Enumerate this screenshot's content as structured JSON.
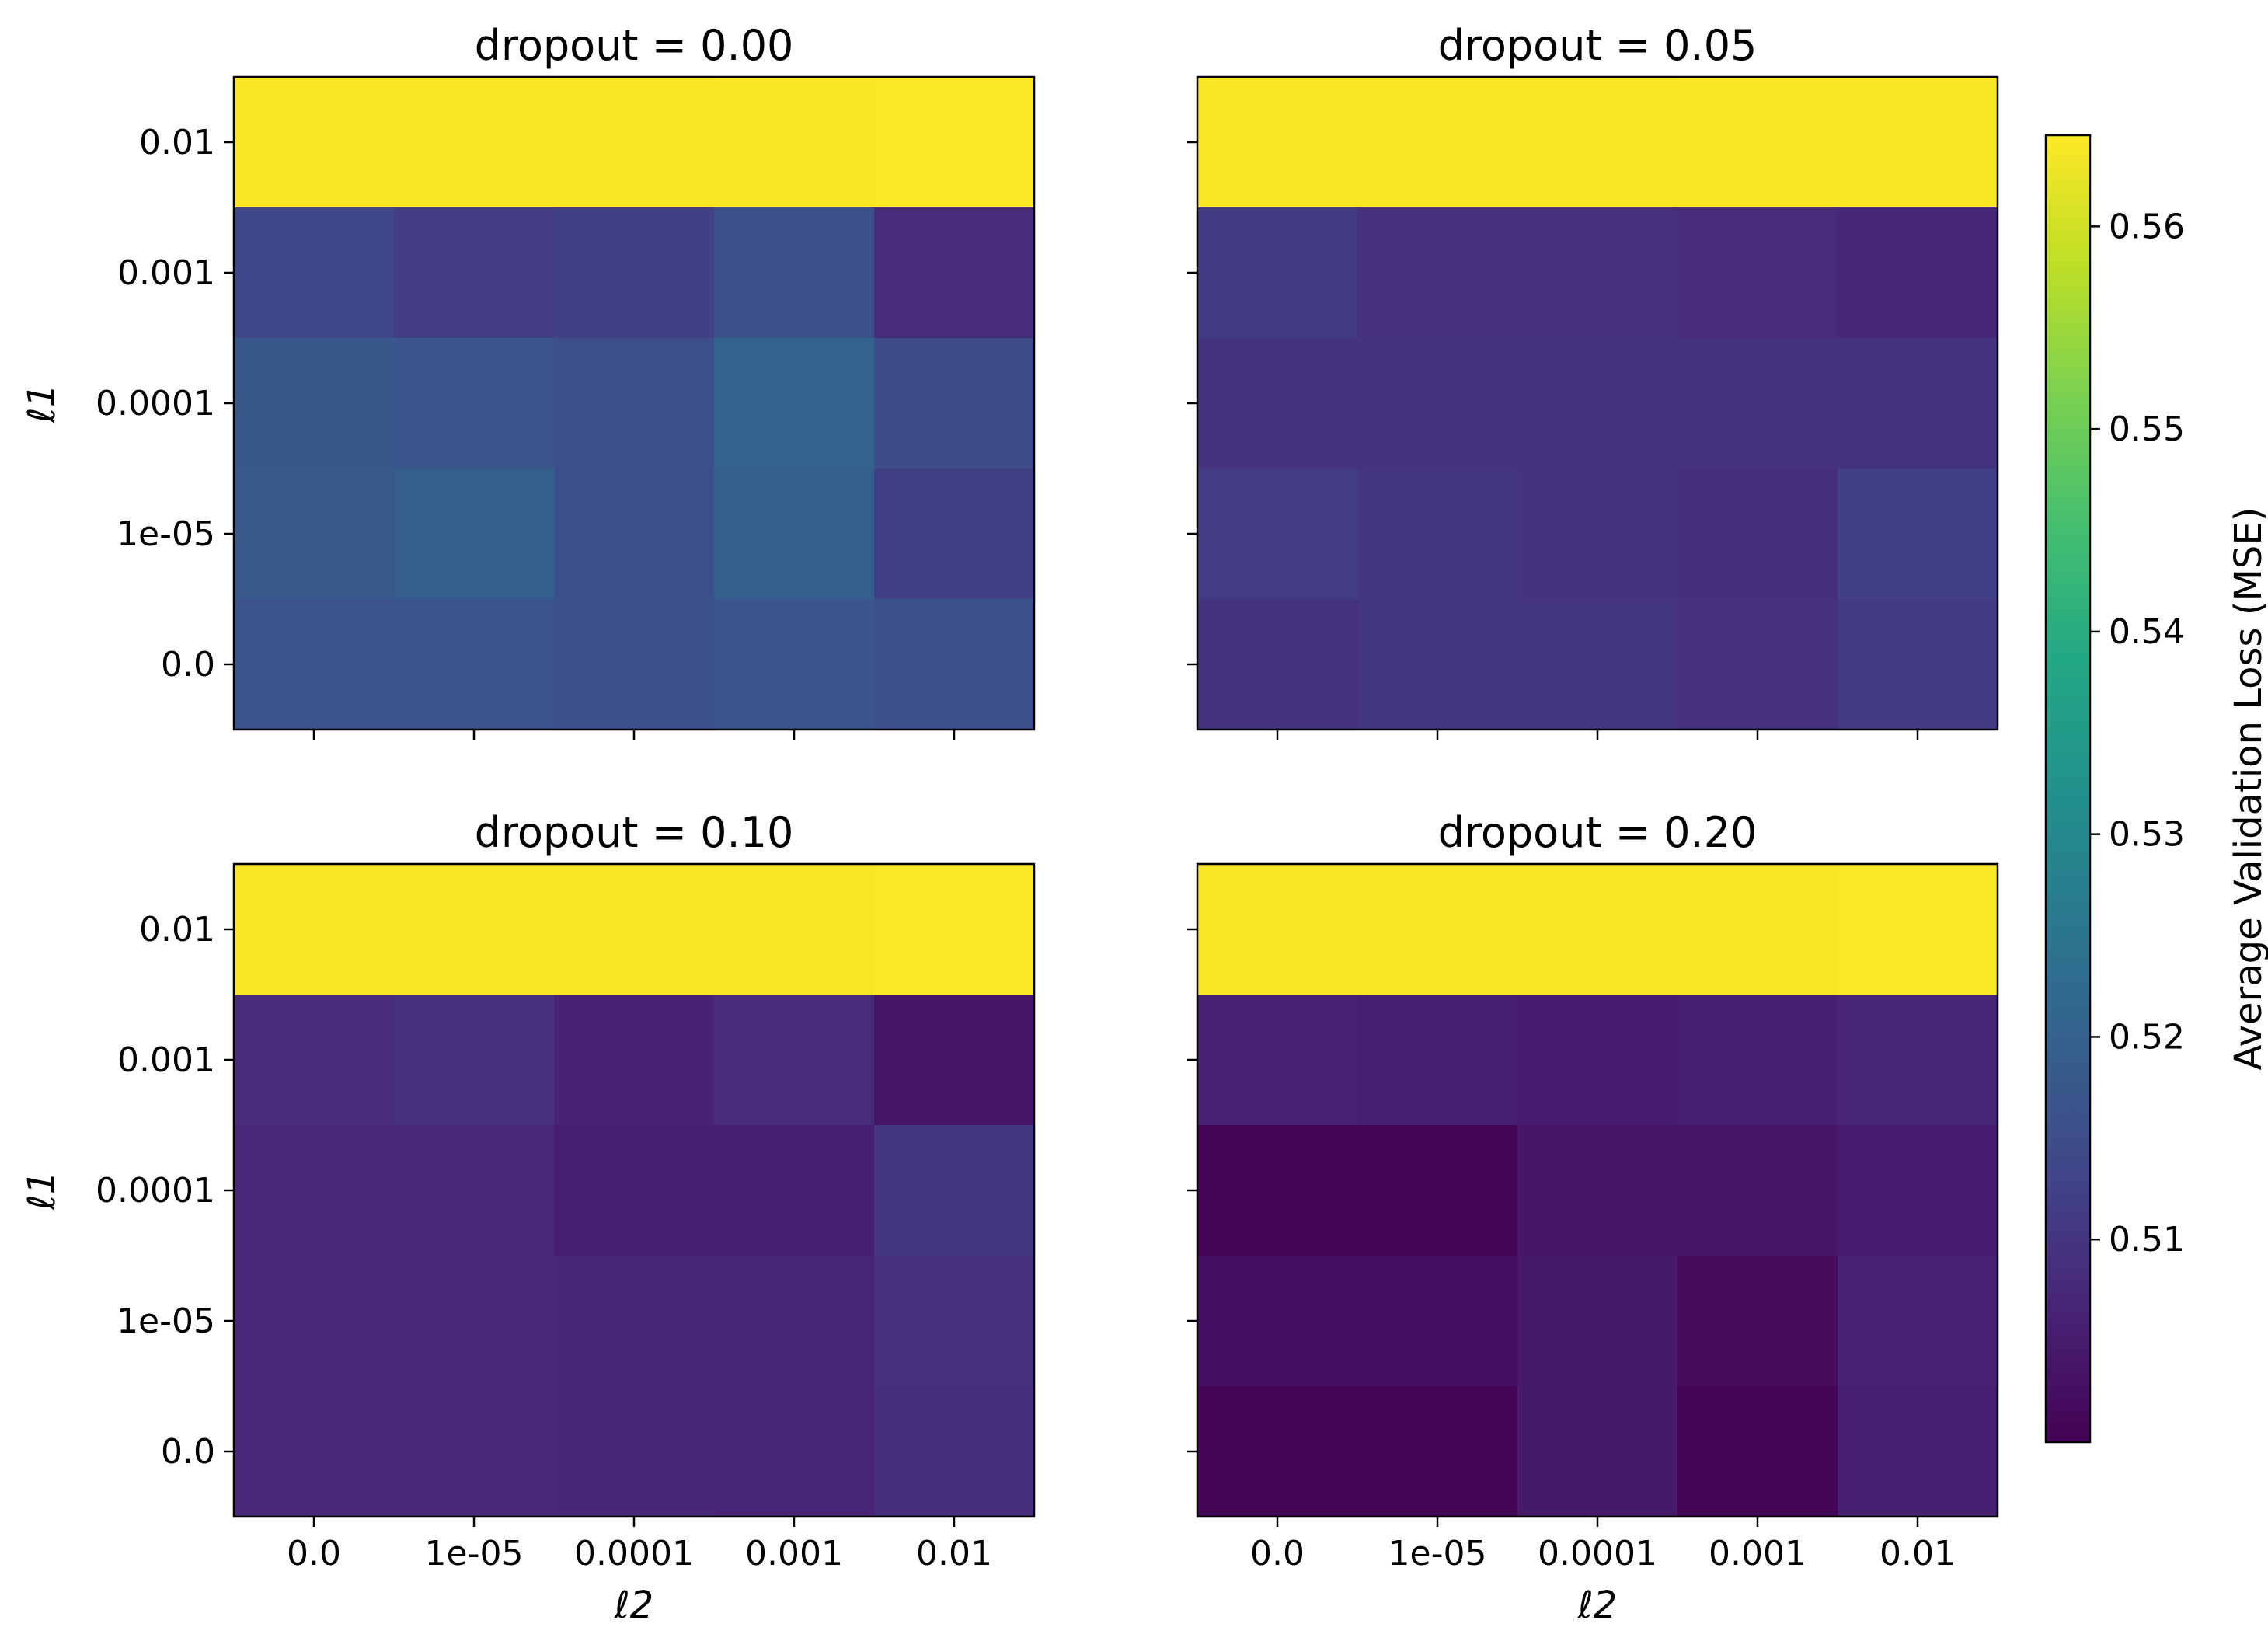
{
  "chart_data": {
    "type": "heatmap",
    "colormap": "viridis",
    "x_tick_labels": [
      "0.0",
      "1e-05",
      "0.0001",
      "0.001",
      "0.01"
    ],
    "y_tick_labels": [
      "0.01",
      "0.001",
      "0.0001",
      "1e-05",
      "0.0"
    ],
    "xlabel": "ℓ2",
    "ylabel": "ℓ1",
    "colorbar": {
      "label": "Average Validation Loss (MSE)",
      "min": 0.5,
      "max": 0.5645,
      "ticks": [
        0.51,
        0.52,
        0.53,
        0.54,
        0.55,
        0.56
      ]
    },
    "panels": [
      {
        "title": "dropout = 0.00",
        "values": [
          [
            0.564,
            0.564,
            0.564,
            0.5641,
            0.5643
          ],
          [
            0.5135,
            0.5115,
            0.512,
            0.5155,
            0.508
          ],
          [
            0.5175,
            0.517,
            0.5155,
            0.5205,
            0.515
          ],
          [
            0.518,
            0.519,
            0.516,
            0.519,
            0.512
          ],
          [
            0.5165,
            0.5165,
            0.516,
            0.517,
            0.516
          ]
        ]
      },
      {
        "title": "dropout = 0.05",
        "values": [
          [
            0.564,
            0.564,
            0.564,
            0.5641,
            0.5641
          ],
          [
            0.511,
            0.509,
            0.509,
            0.508,
            0.507
          ],
          [
            0.5095,
            0.5095,
            0.5095,
            0.5095,
            0.5095
          ],
          [
            0.5115,
            0.51,
            0.5095,
            0.5085,
            0.512
          ],
          [
            0.5095,
            0.51,
            0.51,
            0.509,
            0.511
          ]
        ]
      },
      {
        "title": "dropout = 0.10",
        "values": [
          [
            0.564,
            0.564,
            0.564,
            0.564,
            0.5642
          ],
          [
            0.508,
            0.509,
            0.506,
            0.508,
            0.504
          ],
          [
            0.5075,
            0.5075,
            0.5055,
            0.5055,
            0.51
          ],
          [
            0.5075,
            0.5075,
            0.507,
            0.507,
            0.509
          ],
          [
            0.5075,
            0.5075,
            0.507,
            0.5065,
            0.5085
          ]
        ]
      },
      {
        "title": "dropout = 0.20",
        "values": [
          [
            0.564,
            0.564,
            0.564,
            0.564,
            0.5642
          ],
          [
            0.506,
            0.5055,
            0.505,
            0.5055,
            0.5065
          ],
          [
            0.5005,
            0.5005,
            0.504,
            0.504,
            0.505
          ],
          [
            0.5025,
            0.5025,
            0.5045,
            0.502,
            0.506
          ],
          [
            0.501,
            0.501,
            0.5045,
            0.501,
            0.5055
          ]
        ]
      }
    ]
  }
}
